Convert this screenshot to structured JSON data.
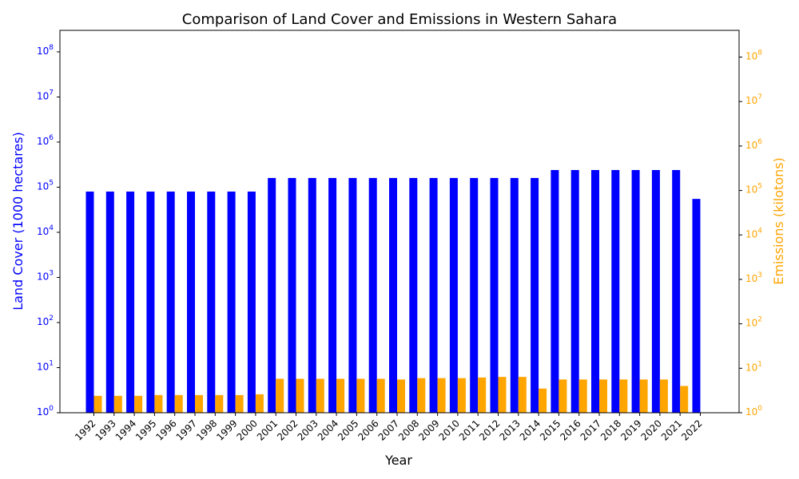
{
  "chart_data": {
    "type": "bar",
    "title": "Comparison of Land Cover and Emissions in Western Sahara",
    "xlabel": "Year",
    "categories": [
      "1992",
      "1993",
      "1994",
      "1995",
      "1996",
      "1997",
      "1998",
      "1999",
      "2000",
      "2001",
      "2002",
      "2003",
      "2004",
      "2005",
      "2006",
      "2007",
      "2008",
      "2009",
      "2010",
      "2011",
      "2012",
      "2013",
      "2014",
      "2015",
      "2016",
      "2017",
      "2018",
      "2019",
      "2020",
      "2021",
      "2022"
    ],
    "axes": {
      "left": {
        "label": "Land Cover (1000 hectares)",
        "scale": "log",
        "ylim": [
          1,
          300000000
        ],
        "color": "#0000ff"
      },
      "right": {
        "label": "Emissions (kilotons)",
        "scale": "log",
        "ylim": [
          1,
          400000000
        ],
        "color": "#ffa500"
      }
    },
    "tick_labels": [
      "10^0",
      "10^1",
      "10^2",
      "10^3",
      "10^4",
      "10^5",
      "10^6",
      "10^7",
      "10^8"
    ],
    "series": [
      {
        "axis": "left",
        "color": "#0000ff",
        "values": [
          80000,
          80000,
          80000,
          80000,
          80000,
          80000,
          80000,
          80000,
          80000,
          160000,
          160000,
          160000,
          160000,
          160000,
          160000,
          160000,
          160000,
          160000,
          160000,
          160000,
          160000,
          160000,
          160000,
          240000,
          240000,
          240000,
          240000,
          240000,
          240000,
          240000,
          55000
        ]
      },
      {
        "axis": "right",
        "color": "#ffa500",
        "values": [
          2.4,
          2.4,
          2.4,
          2.5,
          2.5,
          2.5,
          2.5,
          2.5,
          2.6,
          5.8,
          5.8,
          5.8,
          5.8,
          5.8,
          5.8,
          5.6,
          6.0,
          6.0,
          6.0,
          6.2,
          6.4,
          6.4,
          3.5,
          5.6,
          5.6,
          5.6,
          5.6,
          5.6,
          5.6,
          4.0,
          null
        ]
      }
    ],
    "grid": false
  }
}
